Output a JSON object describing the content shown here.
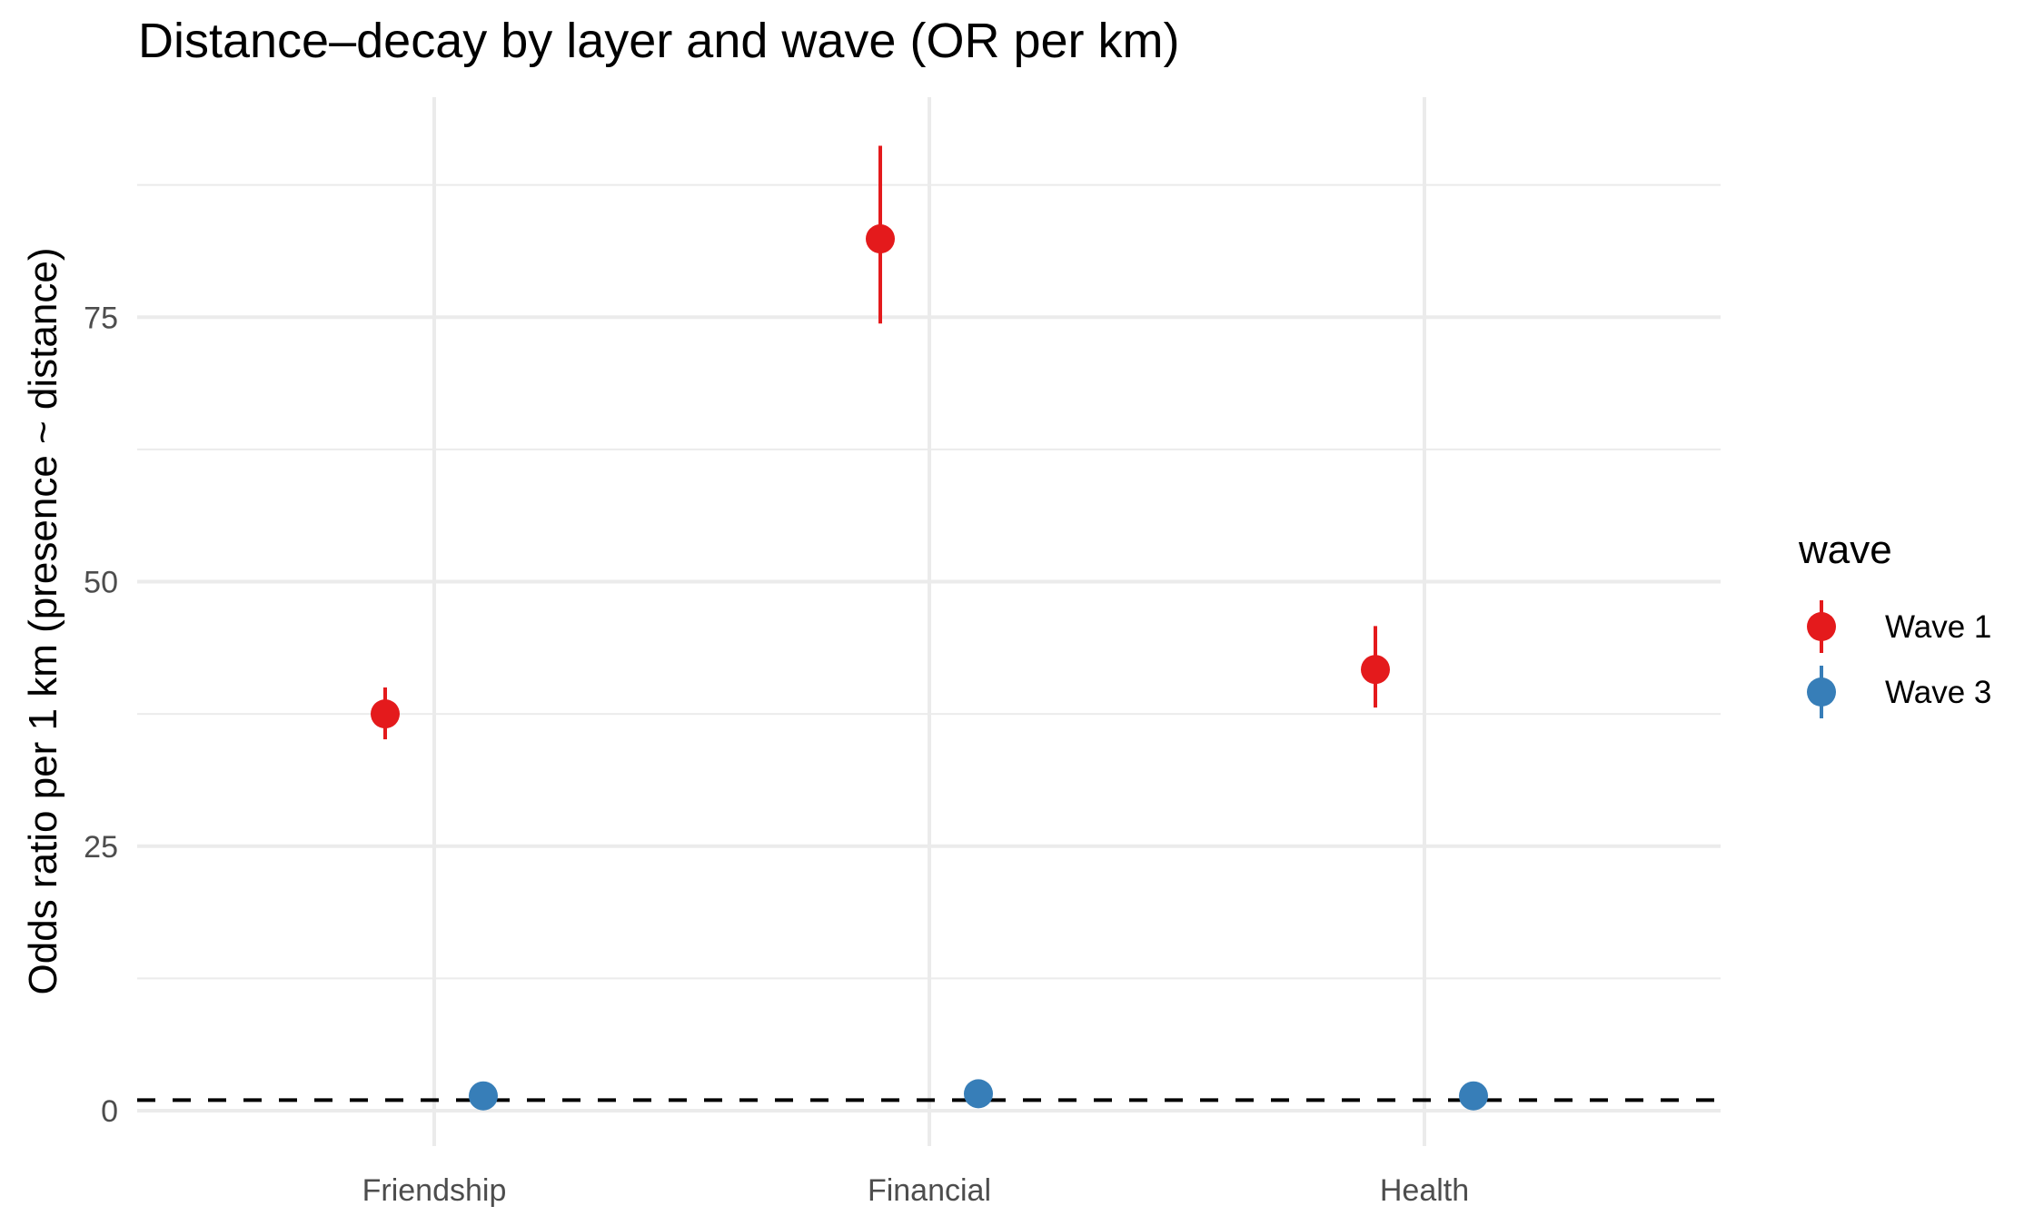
{
  "chart_data": {
    "type": "scatter",
    "subtype": "pointrange",
    "title": "Distance–decay by layer and wave (OR per km)",
    "xlabel": "",
    "ylabel": "Odds ratio per 1 km (presence ~ distance)",
    "categories": [
      "Friendship",
      "Financial",
      "Health"
    ],
    "ylim": [
      -2,
      95
    ],
    "yticks": [
      0,
      25,
      50,
      75
    ],
    "minor_yticks": [
      12.5,
      37.5,
      62.5,
      87.5
    ],
    "grid": true,
    "reference_line": {
      "y": 1,
      "style": "dashed",
      "color": "#000000"
    },
    "legend": {
      "title": "wave",
      "position": "right"
    },
    "series": [
      {
        "name": "Wave 1",
        "color": "#E41A1C",
        "values": [
          37.5,
          82.4,
          41.7
        ],
        "ci_low": [
          35.1,
          74.4,
          38.1
        ],
        "ci_high": [
          40.0,
          91.2,
          45.8
        ]
      },
      {
        "name": "Wave 3",
        "color": "#377EB8",
        "values": [
          1.4,
          1.6,
          1.4
        ],
        "ci_low": [
          1.3,
          1.5,
          1.3
        ],
        "ci_high": [
          1.5,
          1.7,
          1.5
        ]
      }
    ]
  }
}
